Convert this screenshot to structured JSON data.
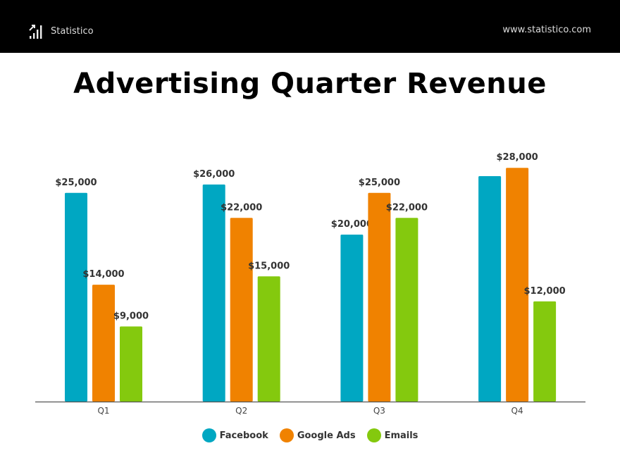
{
  "header": {
    "brand": "Statistico",
    "brand_icon": "chart-growth-icon",
    "website": "www.statistico.com"
  },
  "chart_data": {
    "type": "bar",
    "title": "Advertising Quarter Revenue",
    "categories": [
      "Q1",
      "Q2",
      "Q3",
      "Q4"
    ],
    "series": [
      {
        "name": "Facebook",
        "color": "#00a7c2",
        "values": [
          25000,
          26000,
          20000,
          27000
        ],
        "labels": [
          "$25,000",
          "$26,000",
          "$20,000",
          null
        ]
      },
      {
        "name": "Google Ads",
        "color": "#f08200",
        "values": [
          14000,
          22000,
          25000,
          28000
        ],
        "labels": [
          "$14,000",
          "$22,000",
          "$25,000",
          "$28,000"
        ]
      },
      {
        "name": "Emails",
        "color": "#84c90e",
        "values": [
          9000,
          15000,
          22000,
          12000
        ],
        "labels": [
          "$9,000",
          "$15,000",
          "$22,000",
          "$12,000"
        ]
      }
    ],
    "ylim": [
      0,
      30000
    ],
    "grid": false,
    "legend": "bottom-center"
  }
}
